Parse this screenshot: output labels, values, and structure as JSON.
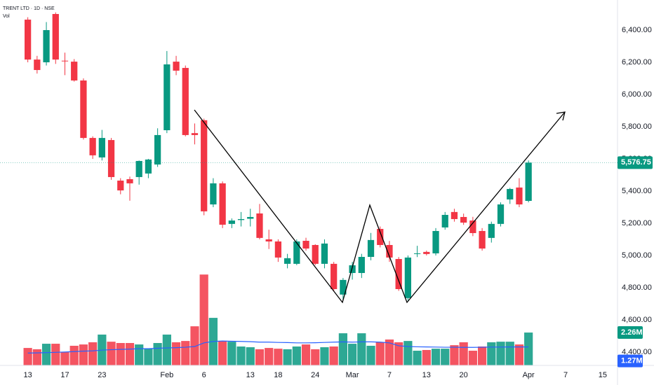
{
  "chart_data": {
    "type": "candlestick",
    "title": "TRENT LTD · 1D · NSE",
    "volume_label": "Vol",
    "up_color": "#089981",
    "down_color": "#f23645",
    "ma_color": "#2962ff",
    "open": [
      6465,
      6217,
      6200,
      6500,
      6210,
      6204,
      6087,
      5730,
      5609,
      5717,
      5465,
      5474,
      5487,
      5509,
      5565,
      5778,
      6204,
      6165,
      5760,
      5840,
      5317,
      5448,
      5196,
      5220,
      5228,
      5261,
      5100,
      5087,
      4948,
      4948,
      5091,
      5065,
      4948,
      4948,
      4757,
      4891,
      4891,
      4991,
      5165,
      5065,
      4978,
      4735,
      5009,
      5022,
      5013,
      5174,
      5270,
      5239,
      5217,
      5152,
      5109,
      5196,
      5348,
      5422,
      5339
    ],
    "high": [
      6480,
      6240,
      6450,
      6510,
      6260,
      6220,
      6100,
      5740,
      5780,
      5730,
      5480,
      5490,
      5590,
      5600,
      5790,
      6270,
      6240,
      6180,
      5820,
      5850,
      5480,
      5460,
      5230,
      5270,
      5290,
      5320,
      5160,
      5100,
      5010,
      5100,
      5110,
      5070,
      5100,
      4960,
      4860,
      4960,
      5010,
      5140,
      5180,
      5090,
      4990,
      5000,
      5060,
      5030,
      5170,
      5270,
      5290,
      5260,
      5240,
      5170,
      5210,
      5330,
      5420,
      5480,
      5590
    ],
    "low": [
      6200,
      6130,
      6180,
      6190,
      6120,
      6080,
      5720,
      5600,
      5590,
      5470,
      5380,
      5340,
      5440,
      5480,
      5550,
      5760,
      6120,
      5740,
      5690,
      5250,
      5300,
      5170,
      5170,
      5180,
      5180,
      5100,
      5040,
      4960,
      4920,
      4940,
      5030,
      4940,
      4920,
      4780,
      4720,
      4850,
      4860,
      4970,
      5050,
      4960,
      4780,
      4720,
      4990,
      5000,
      5000,
      5160,
      5210,
      5190,
      5120,
      5030,
      5080,
      5180,
      5320,
      5300,
      5330
    ],
    "close": [
      6217,
      6152,
      6400,
      6217,
      6208,
      6087,
      5730,
      5622,
      5730,
      5487,
      5404,
      5448,
      5587,
      5596,
      5748,
      6187,
      6148,
      5748,
      5748,
      5274,
      5448,
      5191,
      5217,
      5226,
      5239,
      5109,
      5087,
      4987,
      4983,
      5087,
      5043,
      4948,
      5074,
      4791,
      4848,
      4939,
      4991,
      5096,
      5065,
      4987,
      4791,
      4987,
      5013,
      5009,
      5152,
      5252,
      5226,
      5204,
      5139,
      5043,
      5196,
      5317,
      5413,
      5317,
      5576.75
    ],
    "volume": [
      1.2,
      1.11,
      1.49,
      1.49,
      0.91,
      1.35,
      1.44,
      1.59,
      2.12,
      1.63,
      1.54,
      1.54,
      1.44,
      1.15,
      1.54,
      2.12,
      1.59,
      1.68,
      2.69,
      6.25,
      3.27,
      1.68,
      1.63,
      1.3,
      1.25,
      1.11,
      1.2,
      1.15,
      1.11,
      1.3,
      1.44,
      1.11,
      1.25,
      1.3,
      2.21,
      1.49,
      2.21,
      1.35,
      1.59,
      1.78,
      1.59,
      1.68,
      1.01,
      1.06,
      1.15,
      1.15,
      1.39,
      1.59,
      1.01,
      1.3,
      1.59,
      1.63,
      1.63,
      1.44,
      2.26
    ],
    "volume_ma": [
      0.85,
      0.86,
      0.88,
      0.9,
      0.92,
      0.95,
      0.98,
      1.0,
      1.05,
      1.08,
      1.1,
      1.12,
      1.15,
      1.15,
      1.18,
      1.2,
      1.22,
      1.25,
      1.3,
      1.55,
      1.65,
      1.68,
      1.66,
      1.65,
      1.63,
      1.6,
      1.6,
      1.58,
      1.57,
      1.55,
      1.55,
      1.56,
      1.58,
      1.6,
      1.62,
      1.6,
      1.62,
      1.62,
      1.6,
      1.55,
      1.35,
      1.3,
      1.28,
      1.27,
      1.26,
      1.25,
      1.25,
      1.24,
      1.24,
      1.25,
      1.26,
      1.26,
      1.27,
      1.27,
      1.27
    ],
    "xlim": [
      -3,
      63.6
    ],
    "ylim": [
      4317,
      6587
    ],
    "volume_ylim": [
      0,
      6.5
    ],
    "xticks": [
      {
        "value": 0,
        "label": "13"
      },
      {
        "value": 4,
        "label": "17"
      },
      {
        "value": 8,
        "label": "23"
      },
      {
        "value": 15,
        "label": "Feb"
      },
      {
        "value": 19,
        "label": "6"
      },
      {
        "value": 24,
        "label": "13"
      },
      {
        "value": 27,
        "label": "18"
      },
      {
        "value": 31,
        "label": "24"
      },
      {
        "value": 35,
        "label": "Mar"
      },
      {
        "value": 39,
        "label": "7"
      },
      {
        "value": 43,
        "label": "13"
      },
      {
        "value": 47,
        "label": "20"
      },
      {
        "value": 54,
        "label": "Apr"
      },
      {
        "value": 58,
        "label": "7"
      },
      {
        "value": 62,
        "label": "15"
      }
    ],
    "yticks": [
      {
        "value": 4400,
        "label": "4,400.00"
      },
      {
        "value": 4600,
        "label": "4,600.00"
      },
      {
        "value": 4800,
        "label": "4,800.00"
      },
      {
        "value": 5000,
        "label": "5,000.00"
      },
      {
        "value": 5200,
        "label": "5,200.00"
      },
      {
        "value": 5400,
        "label": "5,400.00"
      },
      {
        "value": 5600,
        "label": "5,600.00"
      },
      {
        "value": 5800,
        "label": "5,800.00"
      },
      {
        "value": 6000,
        "label": "6,000.00"
      },
      {
        "value": 6200,
        "label": "6,200.00"
      },
      {
        "value": 6400,
        "label": "6,400.00"
      }
    ],
    "last_price": {
      "value": 5576.75,
      "label": "5,576.75"
    },
    "last_volume": {
      "value": 2.26,
      "label": "2.26M"
    },
    "last_volume_ma": {
      "value": 1.27,
      "label": "1.27M"
    }
  }
}
